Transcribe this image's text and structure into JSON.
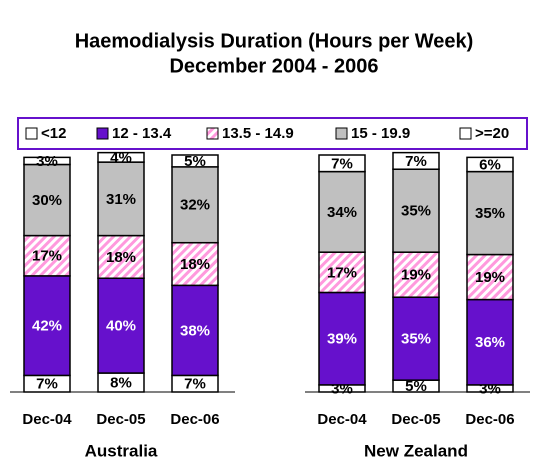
{
  "chart_data": {
    "type": "stacked-bar",
    "title": "Haemodialysis Duration (Hours per Week)",
    "subtitle": "December 2004 - 2006",
    "categories": [
      "Dec-04",
      "Dec-05",
      "Dec-06",
      "Dec-04",
      "Dec-05",
      "Dec-06"
    ],
    "groups": [
      "Australia",
      "New Zealand"
    ],
    "ylim": [
      0,
      100
    ],
    "series": [
      {
        "name": "<12",
        "color": "#ffffff",
        "values": [
          7,
          8,
          7,
          3,
          5,
          3
        ],
        "value_labels": [
          "7%",
          "8%",
          "7%",
          "3%",
          "5%",
          "3%"
        ]
      },
      {
        "name": "12 - 13.4",
        "color": "#6611cc",
        "values": [
          42,
          40,
          38,
          39,
          35,
          36
        ],
        "value_labels": [
          "42%",
          "40%",
          "38%",
          "39%",
          "35%",
          "36%"
        ]
      },
      {
        "name": "13.5 - 14.9",
        "color": "hatch-pink",
        "values": [
          17,
          18,
          18,
          17,
          19,
          19
        ],
        "value_labels": [
          "17%",
          "18%",
          "18%",
          "17%",
          "19%",
          "19%"
        ]
      },
      {
        "name": "15 - 19.9",
        "color": "#c0c0c0",
        "values": [
          30,
          31,
          32,
          34,
          35,
          35
        ],
        "value_labels": [
          "30%",
          "31%",
          "32%",
          "34%",
          "35%",
          "35%"
        ]
      },
      {
        "name": ">=20",
        "color": "#ffffff",
        "values": [
          3,
          4,
          5,
          7,
          7,
          6
        ],
        "value_labels": [
          "3%",
          "4%",
          "5%",
          "7%",
          "7%",
          "6%"
        ]
      }
    ]
  }
}
